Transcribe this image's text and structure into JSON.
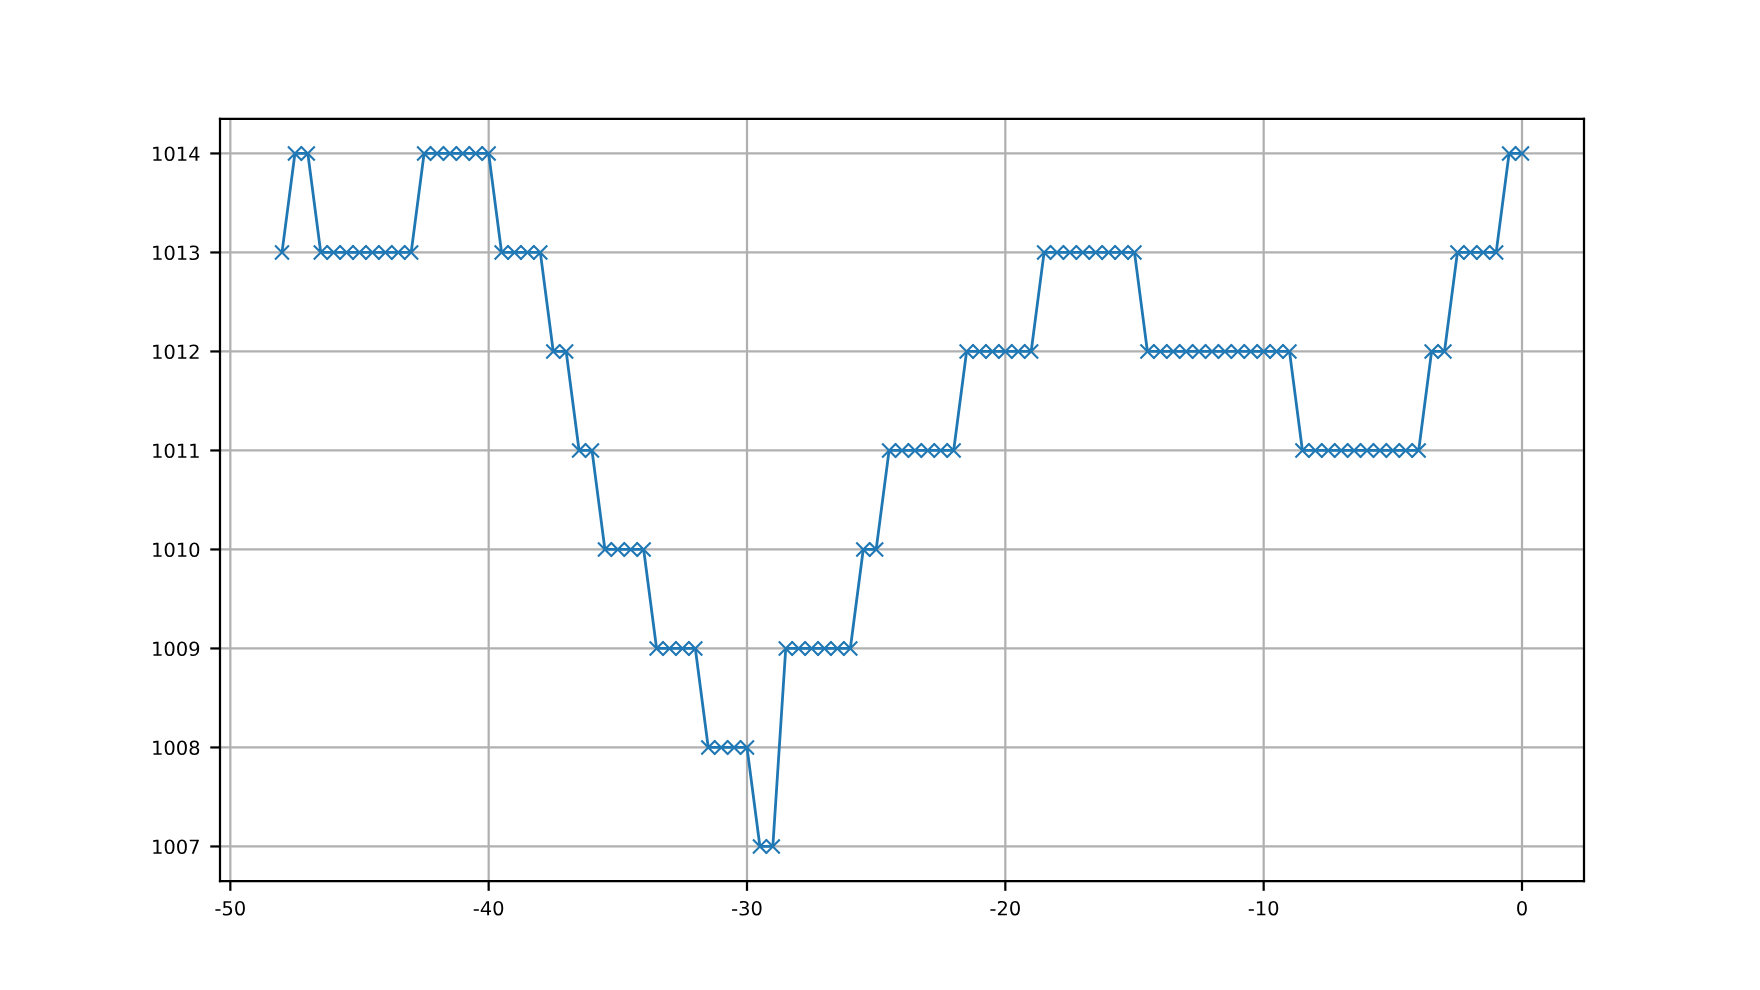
{
  "chart_data": {
    "type": "line",
    "x": [
      -48,
      -47.5,
      -47,
      -46.5,
      -46,
      -45.5,
      -45,
      -44.5,
      -44,
      -43.5,
      -43,
      -42.5,
      -42,
      -41.5,
      -41,
      -40.5,
      -40,
      -39.5,
      -39,
      -38.5,
      -38,
      -37.5,
      -37,
      -36.5,
      -36,
      -35.5,
      -35,
      -34.5,
      -34,
      -33.5,
      -33,
      -32.5,
      -32,
      -31.5,
      -31,
      -30.5,
      -30,
      -29.5,
      -29,
      -28.5,
      -28,
      -27.5,
      -27,
      -26.5,
      -26,
      -25.5,
      -25,
      -24.5,
      -24,
      -23.5,
      -23,
      -22.5,
      -22,
      -21.5,
      -21,
      -20.5,
      -20,
      -19.5,
      -19,
      -18.5,
      -18,
      -17.5,
      -17,
      -16.5,
      -16,
      -15.5,
      -15,
      -14.5,
      -14,
      -13.5,
      -13,
      -12.5,
      -12,
      -11.5,
      -11,
      -10.5,
      -10,
      -9.5,
      -9,
      -8.5,
      -8,
      -7.5,
      -7,
      -6.5,
      -6,
      -5.5,
      -5,
      -4.5,
      -4,
      -3.5,
      -3,
      -2.5,
      -2,
      -1.5,
      -1,
      -0.5,
      0
    ],
    "series": [
      {
        "color": "#1f77b4",
        "values": [
          1013,
          1014,
          1014,
          1013,
          1013,
          1013,
          1013,
          1013,
          1013,
          1013,
          1013,
          1014,
          1014,
          1014,
          1014,
          1014,
          1014,
          1013,
          1013,
          1013,
          1013,
          1012,
          1012,
          1011,
          1011,
          1010,
          1010,
          1010,
          1010,
          1009,
          1009,
          1009,
          1009,
          1008,
          1008,
          1008,
          1008,
          1007,
          1007,
          1009,
          1009,
          1009,
          1009,
          1009,
          1009,
          1010,
          1010,
          1011,
          1011,
          1011,
          1011,
          1011,
          1011,
          1012,
          1012,
          1012,
          1012,
          1012,
          1012,
          1013,
          1013,
          1013,
          1013,
          1013,
          1013,
          1013,
          1013,
          1012,
          1012,
          1012,
          1012,
          1012,
          1012,
          1012,
          1012,
          1012,
          1012,
          1012,
          1012,
          1011,
          1011,
          1011,
          1011,
          1011,
          1011,
          1011,
          1011,
          1011,
          1011,
          1012,
          1012,
          1013,
          1013,
          1013,
          1013,
          1014,
          1014
        ]
      }
    ],
    "xlim": [
      -50.4,
      2.4
    ],
    "ylim": [
      1006.65,
      1014.35
    ],
    "xticks": [
      -50,
      -40,
      -30,
      -20,
      -10,
      0
    ],
    "yticks": [
      1007,
      1008,
      1009,
      1010,
      1011,
      1012,
      1013,
      1014
    ],
    "grid": true,
    "marker": "cross",
    "line_style": "solid"
  }
}
